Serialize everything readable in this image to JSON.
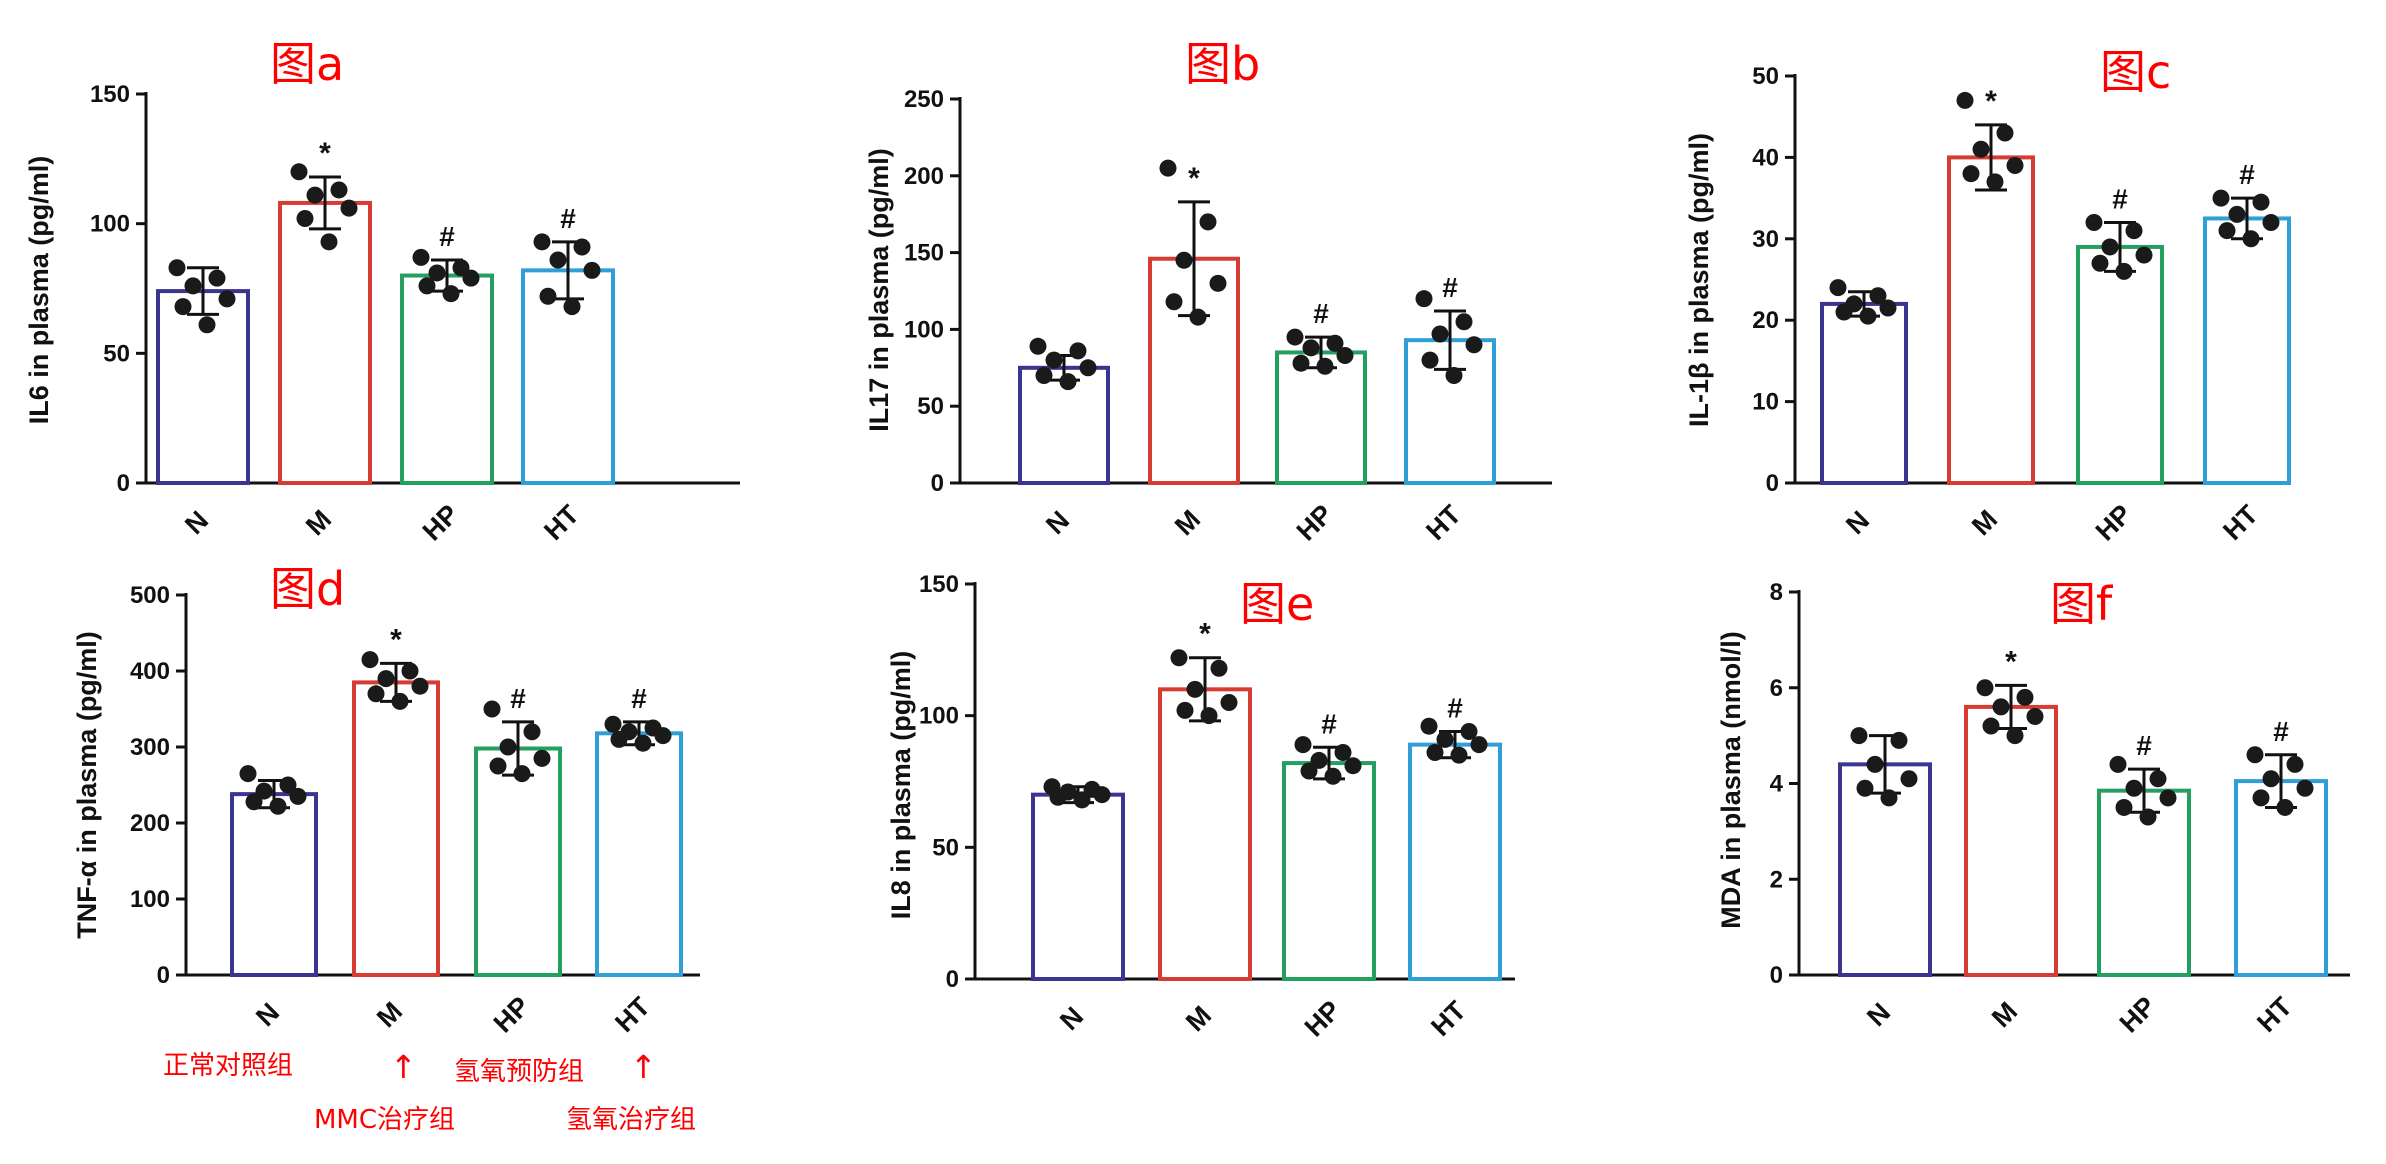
{
  "colors": {
    "N": "#3b3491",
    "M": "#d63b34",
    "HP": "#23a060",
    "HT": "#2f9fd6",
    "dot": "#1a1a1a",
    "label": "#ff0000"
  },
  "annotations": {
    "n_group": "正常对照组",
    "m_group": "MMC治疗组",
    "hp_group": "氢氧预防组",
    "ht_group": "氢氧治疗组",
    "arrow": "↑"
  },
  "chart_data": [
    {
      "type": "bar",
      "panel": "图a",
      "ylabel": "IL6 in plasma (pg/ml)",
      "ylim": [
        0,
        150
      ],
      "yticks": [
        0,
        50,
        100,
        150
      ],
      "categories": [
        "N",
        "M",
        "HP",
        "HT"
      ],
      "values": [
        74,
        108,
        80,
        82
      ],
      "sd": [
        9,
        10,
        6,
        11
      ],
      "significance": [
        "",
        "*",
        "#",
        "#"
      ],
      "points": [
        [
          83,
          79,
          76,
          71,
          68,
          61
        ],
        [
          120,
          113,
          111,
          106,
          102,
          93
        ],
        [
          87,
          83,
          81,
          79,
          76,
          73
        ],
        [
          93,
          91,
          86,
          82,
          72,
          68
        ]
      ]
    },
    {
      "type": "bar",
      "panel": "图b",
      "ylabel": "IL17 in plasma (pg/ml)",
      "ylim": [
        0,
        250
      ],
      "yticks": [
        0,
        50,
        100,
        150,
        200,
        250
      ],
      "categories": [
        "N",
        "M",
        "HP",
        "HT"
      ],
      "values": [
        75,
        146,
        85,
        93
      ],
      "sd": [
        8,
        37,
        10,
        19
      ],
      "significance": [
        "",
        "*",
        "#",
        "#"
      ],
      "points": [
        [
          89,
          86,
          80,
          75,
          70,
          66
        ],
        [
          205,
          170,
          145,
          130,
          118,
          108
        ],
        [
          95,
          91,
          88,
          83,
          78,
          76
        ],
        [
          120,
          105,
          97,
          90,
          80,
          70
        ]
      ]
    },
    {
      "type": "bar",
      "panel": "图c",
      "ylabel": "IL-1β in plasma (pg/ml)",
      "ylim": [
        0,
        50
      ],
      "yticks": [
        0,
        10,
        20,
        30,
        40,
        50
      ],
      "categories": [
        "N",
        "M",
        "HP",
        "HT"
      ],
      "values": [
        22,
        40,
        29,
        32.5
      ],
      "sd": [
        1.5,
        4,
        3,
        2.5
      ],
      "significance": [
        "",
        "*",
        "#",
        "#"
      ],
      "points": [
        [
          24,
          23,
          22,
          21.5,
          21,
          20.5
        ],
        [
          47,
          43,
          41,
          39,
          38,
          37
        ],
        [
          32,
          31,
          29,
          28,
          27,
          26
        ],
        [
          35,
          34.5,
          33,
          32,
          31,
          30
        ]
      ]
    },
    {
      "type": "bar",
      "panel": "图d",
      "ylabel": "TNF-α in plasma (pg/ml)",
      "ylim": [
        0,
        500
      ],
      "yticks": [
        0,
        100,
        200,
        300,
        400,
        500
      ],
      "categories": [
        "N",
        "M",
        "HP",
        "HT"
      ],
      "values": [
        238,
        385,
        298,
        318
      ],
      "sd": [
        18,
        25,
        35,
        15
      ],
      "significance": [
        "",
        "*",
        "#",
        "#"
      ],
      "points": [
        [
          265,
          250,
          242,
          235,
          228,
          222
        ],
        [
          415,
          400,
          390,
          380,
          370,
          360
        ],
        [
          350,
          320,
          300,
          285,
          275,
          265
        ],
        [
          330,
          325,
          320,
          315,
          310,
          305
        ]
      ]
    },
    {
      "type": "bar",
      "panel": "图e",
      "ylabel": "IL8 in plasma (pg/ml)",
      "ylim": [
        0,
        150
      ],
      "yticks": [
        0,
        50,
        100,
        150
      ],
      "categories": [
        "N",
        "M",
        "HP",
        "HT"
      ],
      "values": [
        70,
        110,
        82,
        89
      ],
      "sd": [
        3,
        12,
        6,
        5
      ],
      "significance": [
        "",
        "*",
        "#",
        "#"
      ],
      "points": [
        [
          73,
          72,
          71,
          70,
          69,
          68
        ],
        [
          122,
          118,
          110,
          105,
          102,
          100
        ],
        [
          89,
          86,
          83,
          81,
          79,
          77
        ],
        [
          96,
          94,
          91,
          89,
          86,
          85
        ]
      ]
    },
    {
      "type": "bar",
      "panel": "图f",
      "ylabel": "MDA in plasma (nmol/l)",
      "ylim": [
        0,
        8
      ],
      "yticks": [
        0,
        2,
        4,
        6,
        8
      ],
      "categories": [
        "N",
        "M",
        "HP",
        "HT"
      ],
      "values": [
        4.4,
        5.6,
        3.85,
        4.05
      ],
      "sd": [
        0.6,
        0.45,
        0.45,
        0.55
      ],
      "significance": [
        "",
        "*",
        "#",
        "#"
      ],
      "points": [
        [
          5.0,
          4.9,
          4.4,
          4.1,
          3.9,
          3.7
        ],
        [
          6.0,
          5.8,
          5.6,
          5.4,
          5.2,
          5.0
        ],
        [
          4.4,
          4.1,
          3.9,
          3.7,
          3.5,
          3.3
        ],
        [
          4.6,
          4.4,
          4.1,
          3.9,
          3.7,
          3.5
        ]
      ]
    }
  ]
}
